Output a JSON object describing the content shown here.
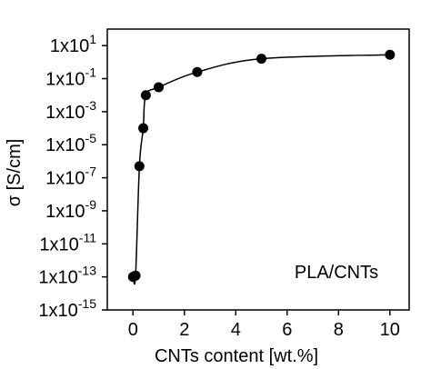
{
  "chart_data": {
    "type": "scatter-line",
    "log_y": true,
    "x_label": "CNTs content [wt.%]",
    "y_label": "σ [S/cm]",
    "annotation": "PLA/CNTs",
    "series": [
      {
        "name": "PLA/CNTs",
        "color": "#000000",
        "x": [
          0,
          0.1,
          0.25,
          0.4,
          0.5,
          1,
          2.5,
          5,
          10
        ],
        "values": [
          1e-13,
          1.2e-13,
          5e-07,
          0.0001,
          0.01,
          0.03,
          0.25,
          1.6,
          2.8
        ]
      }
    ],
    "xlim": [
      -1,
      10.75
    ],
    "xticks": [
      0,
      2,
      4,
      6,
      8,
      10
    ],
    "ylim": [
      1e-15,
      100
    ],
    "yticks": [
      {
        "value": 10,
        "label": "1x10",
        "power": "1"
      },
      {
        "value": 0.1,
        "label": "1x10",
        "power": "-1"
      },
      {
        "value": 0.001,
        "label": "1x10",
        "power": "-3"
      },
      {
        "value": 1e-05,
        "label": "1x10",
        "power": "-5"
      },
      {
        "value": 1e-07,
        "label": "1x10",
        "power": "-7"
      },
      {
        "value": 1e-09,
        "label": "1x10",
        "power": "-9"
      },
      {
        "value": 1e-11,
        "label": "1x10",
        "power": "-11"
      },
      {
        "value": 1e-13,
        "label": "1x10",
        "power": "-13"
      },
      {
        "value": 1e-15,
        "label": "1x10",
        "power": "-15"
      }
    ]
  }
}
